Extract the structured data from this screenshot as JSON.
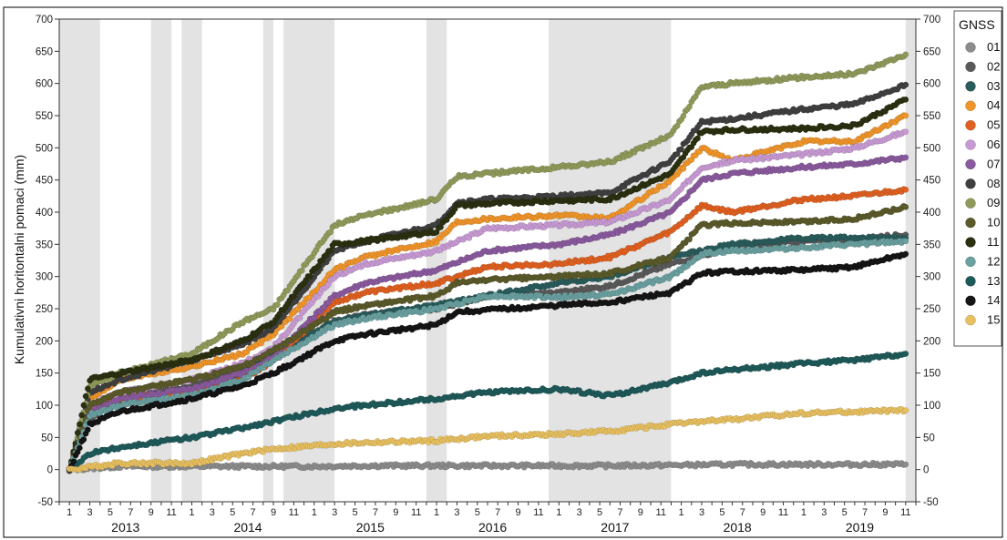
{
  "chart_data": {
    "type": "scatter",
    "title": "",
    "ylabel": "Kumulativni horitontalni pomaci (mm)",
    "xlabel": "",
    "ylim": [
      -50,
      700
    ],
    "yticks": [
      -50,
      0,
      50,
      100,
      150,
      200,
      250,
      300,
      350,
      400,
      450,
      500,
      550,
      600,
      650,
      700
    ],
    "x_range_months": [
      "2012-12",
      "2019-12"
    ],
    "years": [
      "2013",
      "2014",
      "2015",
      "2016",
      "2017",
      "2018",
      "2019"
    ],
    "month_ticks": [
      "1",
      "3",
      "5",
      "7",
      "9",
      "11"
    ],
    "grid": false,
    "shaded_periods": [
      [
        "2012-12",
        "2013-04"
      ],
      [
        "2013-09",
        "2013-11"
      ],
      [
        "2013-12",
        "2014-02"
      ],
      [
        "2014-08",
        "2014-09"
      ],
      [
        "2014-10",
        "2015-03"
      ],
      [
        "2015-12",
        "2016-02"
      ],
      [
        "2016-12",
        "2017-12"
      ],
      [
        "2019-11",
        "2019-12"
      ]
    ],
    "legend": {
      "title": "GNSS",
      "position": "right"
    },
    "series": [
      {
        "name": "01",
        "color": "#8c8c8c",
        "points": [
          [
            "2013-01",
            0
          ],
          [
            "2013-06",
            5
          ],
          [
            "2014-01",
            5
          ],
          [
            "2014-06",
            5
          ],
          [
            "2015-01",
            5
          ],
          [
            "2015-06",
            6
          ],
          [
            "2016-01",
            6
          ],
          [
            "2016-06",
            6
          ],
          [
            "2017-01",
            6
          ],
          [
            "2017-06",
            6
          ],
          [
            "2018-01",
            7
          ],
          [
            "2018-06",
            8
          ],
          [
            "2019-01",
            8
          ],
          [
            "2019-06",
            8
          ],
          [
            "2019-11",
            8
          ]
        ]
      },
      {
        "name": "02",
        "color": "#5a5a5a",
        "points": [
          [
            "2013-01",
            0
          ],
          [
            "2013-03",
            80
          ],
          [
            "2013-06",
            110
          ],
          [
            "2014-01",
            130
          ],
          [
            "2014-06",
            160
          ],
          [
            "2014-09",
            170
          ],
          [
            "2015-03",
            230
          ],
          [
            "2015-06",
            240
          ],
          [
            "2016-01",
            250
          ],
          [
            "2016-06",
            270
          ],
          [
            "2017-01",
            275
          ],
          [
            "2017-06",
            285
          ],
          [
            "2017-12",
            320
          ],
          [
            "2018-06",
            345
          ],
          [
            "2019-01",
            355
          ],
          [
            "2019-06",
            358
          ],
          [
            "2019-11",
            365
          ]
        ]
      },
      {
        "name": "03",
        "color": "#2a5c5c",
        "points": [
          [
            "2013-01",
            0
          ],
          [
            "2013-03",
            90
          ],
          [
            "2013-06",
            105
          ],
          [
            "2014-01",
            120
          ],
          [
            "2014-06",
            150
          ],
          [
            "2014-09",
            180
          ],
          [
            "2015-03",
            230
          ],
          [
            "2015-06",
            240
          ],
          [
            "2016-01",
            255
          ],
          [
            "2016-06",
            270
          ],
          [
            "2017-01",
            290
          ],
          [
            "2017-06",
            300
          ],
          [
            "2017-12",
            330
          ],
          [
            "2018-06",
            350
          ],
          [
            "2019-01",
            360
          ],
          [
            "2019-06",
            360
          ],
          [
            "2019-11",
            360
          ]
        ]
      },
      {
        "name": "04",
        "color": "#f0952a",
        "points": [
          [
            "2013-01",
            0
          ],
          [
            "2013-03",
            110
          ],
          [
            "2013-06",
            140
          ],
          [
            "2014-01",
            160
          ],
          [
            "2014-06",
            180
          ],
          [
            "2014-09",
            210
          ],
          [
            "2015-03",
            310
          ],
          [
            "2015-06",
            330
          ],
          [
            "2016-01",
            355
          ],
          [
            "2016-03",
            385
          ],
          [
            "2016-06",
            390
          ],
          [
            "2017-01",
            395
          ],
          [
            "2017-06",
            390
          ],
          [
            "2017-12",
            450
          ],
          [
            "2018-03",
            500
          ],
          [
            "2018-06",
            480
          ],
          [
            "2019-01",
            510
          ],
          [
            "2019-06",
            510
          ],
          [
            "2019-11",
            550
          ]
        ]
      },
      {
        "name": "05",
        "color": "#e06020",
        "points": [
          [
            "2013-01",
            0
          ],
          [
            "2013-03",
            95
          ],
          [
            "2013-06",
            110
          ],
          [
            "2014-01",
            120
          ],
          [
            "2014-06",
            140
          ],
          [
            "2014-09",
            170
          ],
          [
            "2015-03",
            260
          ],
          [
            "2015-06",
            275
          ],
          [
            "2016-01",
            290
          ],
          [
            "2016-06",
            315
          ],
          [
            "2017-01",
            320
          ],
          [
            "2017-06",
            330
          ],
          [
            "2017-12",
            370
          ],
          [
            "2018-03",
            410
          ],
          [
            "2018-06",
            400
          ],
          [
            "2019-01",
            420
          ],
          [
            "2019-06",
            425
          ],
          [
            "2019-11",
            435
          ]
        ]
      },
      {
        "name": "06",
        "color": "#c89ad4",
        "points": [
          [
            "2013-01",
            0
          ],
          [
            "2013-03",
            100
          ],
          [
            "2013-06",
            120
          ],
          [
            "2014-01",
            140
          ],
          [
            "2014-06",
            165
          ],
          [
            "2014-09",
            190
          ],
          [
            "2015-03",
            300
          ],
          [
            "2015-06",
            320
          ],
          [
            "2016-01",
            340
          ],
          [
            "2016-06",
            375
          ],
          [
            "2017-01",
            380
          ],
          [
            "2017-06",
            385
          ],
          [
            "2017-12",
            420
          ],
          [
            "2018-03",
            470
          ],
          [
            "2018-06",
            480
          ],
          [
            "2019-01",
            490
          ],
          [
            "2019-06",
            500
          ],
          [
            "2019-11",
            525
          ]
        ]
      },
      {
        "name": "07",
        "color": "#8a5a9e",
        "points": [
          [
            "2013-01",
            0
          ],
          [
            "2013-03",
            90
          ],
          [
            "2013-06",
            110
          ],
          [
            "2014-01",
            125
          ],
          [
            "2014-06",
            150
          ],
          [
            "2014-09",
            175
          ],
          [
            "2015-03",
            270
          ],
          [
            "2015-06",
            290
          ],
          [
            "2016-01",
            310
          ],
          [
            "2016-06",
            340
          ],
          [
            "2017-01",
            350
          ],
          [
            "2017-06",
            365
          ],
          [
            "2017-12",
            400
          ],
          [
            "2018-03",
            450
          ],
          [
            "2018-06",
            460
          ],
          [
            "2019-01",
            470
          ],
          [
            "2019-06",
            475
          ],
          [
            "2019-11",
            485
          ]
        ]
      },
      {
        "name": "08",
        "color": "#404040",
        "points": [
          [
            "2013-01",
            0
          ],
          [
            "2013-03",
            120
          ],
          [
            "2013-06",
            140
          ],
          [
            "2014-01",
            170
          ],
          [
            "2014-06",
            195
          ],
          [
            "2014-09",
            220
          ],
          [
            "2015-03",
            340
          ],
          [
            "2015-06",
            355
          ],
          [
            "2016-01",
            380
          ],
          [
            "2016-03",
            415
          ],
          [
            "2016-06",
            420
          ],
          [
            "2017-01",
            425
          ],
          [
            "2017-06",
            430
          ],
          [
            "2017-12",
            480
          ],
          [
            "2018-03",
            540
          ],
          [
            "2018-06",
            545
          ],
          [
            "2019-01",
            560
          ],
          [
            "2019-06",
            568
          ],
          [
            "2019-11",
            598
          ]
        ]
      },
      {
        "name": "09",
        "color": "#8f9a5a",
        "points": [
          [
            "2013-01",
            0
          ],
          [
            "2013-03",
            130
          ],
          [
            "2013-06",
            150
          ],
          [
            "2014-01",
            180
          ],
          [
            "2014-06",
            230
          ],
          [
            "2014-09",
            250
          ],
          [
            "2015-03",
            380
          ],
          [
            "2015-06",
            395
          ],
          [
            "2016-01",
            420
          ],
          [
            "2016-03",
            455
          ],
          [
            "2016-06",
            460
          ],
          [
            "2017-01",
            470
          ],
          [
            "2017-06",
            478
          ],
          [
            "2017-12",
            520
          ],
          [
            "2018-03",
            595
          ],
          [
            "2018-06",
            600
          ],
          [
            "2019-01",
            610
          ],
          [
            "2019-06",
            615
          ],
          [
            "2019-11",
            645
          ]
        ]
      },
      {
        "name": "10",
        "color": "#5a5a2a",
        "points": [
          [
            "2013-01",
            0
          ],
          [
            "2013-03",
            100
          ],
          [
            "2013-06",
            120
          ],
          [
            "2014-01",
            140
          ],
          [
            "2014-06",
            160
          ],
          [
            "2014-09",
            185
          ],
          [
            "2015-03",
            245
          ],
          [
            "2015-06",
            255
          ],
          [
            "2016-01",
            270
          ],
          [
            "2016-03",
            290
          ],
          [
            "2016-06",
            295
          ],
          [
            "2017-01",
            300
          ],
          [
            "2017-06",
            305
          ],
          [
            "2017-12",
            330
          ],
          [
            "2018-03",
            380
          ],
          [
            "2018-06",
            383
          ],
          [
            "2019-01",
            385
          ],
          [
            "2019-06",
            390
          ],
          [
            "2019-11",
            408
          ]
        ]
      },
      {
        "name": "11",
        "color": "#2a3010",
        "points": [
          [
            "2013-01",
            0
          ],
          [
            "2013-03",
            140
          ],
          [
            "2013-06",
            150
          ],
          [
            "2014-01",
            170
          ],
          [
            "2014-06",
            200
          ],
          [
            "2014-09",
            230
          ],
          [
            "2015-03",
            350
          ],
          [
            "2015-06",
            355
          ],
          [
            "2016-01",
            370
          ],
          [
            "2016-03",
            410
          ],
          [
            "2016-06",
            413
          ],
          [
            "2017-01",
            418
          ],
          [
            "2017-06",
            420
          ],
          [
            "2017-12",
            460
          ],
          [
            "2018-03",
            525
          ],
          [
            "2018-06",
            528
          ],
          [
            "2019-01",
            530
          ],
          [
            "2019-06",
            535
          ],
          [
            "2019-11",
            575
          ]
        ]
      },
      {
        "name": "12",
        "color": "#6aa0a0",
        "points": [
          [
            "2013-01",
            0
          ],
          [
            "2013-03",
            85
          ],
          [
            "2013-06",
            100
          ],
          [
            "2014-01",
            115
          ],
          [
            "2014-06",
            140
          ],
          [
            "2014-09",
            170
          ],
          [
            "2015-03",
            225
          ],
          [
            "2015-06",
            235
          ],
          [
            "2016-01",
            250
          ],
          [
            "2016-06",
            270
          ],
          [
            "2017-01",
            268
          ],
          [
            "2017-06",
            272
          ],
          [
            "2017-12",
            300
          ],
          [
            "2018-03",
            335
          ],
          [
            "2018-06",
            340
          ],
          [
            "2019-01",
            345
          ],
          [
            "2019-06",
            350
          ],
          [
            "2019-11",
            355
          ]
        ]
      },
      {
        "name": "13",
        "color": "#1f5a5a",
        "points": [
          [
            "2013-01",
            0
          ],
          [
            "2013-03",
            25
          ],
          [
            "2013-06",
            35
          ],
          [
            "2014-01",
            50
          ],
          [
            "2014-06",
            65
          ],
          [
            "2014-09",
            75
          ],
          [
            "2015-03",
            95
          ],
          [
            "2015-06",
            100
          ],
          [
            "2016-01",
            110
          ],
          [
            "2016-06",
            120
          ],
          [
            "2017-01",
            125
          ],
          [
            "2017-06",
            115
          ],
          [
            "2017-12",
            135
          ],
          [
            "2018-03",
            150
          ],
          [
            "2018-06",
            155
          ],
          [
            "2019-01",
            165
          ],
          [
            "2019-06",
            170
          ],
          [
            "2019-11",
            180
          ]
        ]
      },
      {
        "name": "14",
        "color": "#151515",
        "points": [
          [
            "2013-01",
            0
          ],
          [
            "2013-03",
            70
          ],
          [
            "2013-06",
            90
          ],
          [
            "2014-01",
            110
          ],
          [
            "2014-06",
            130
          ],
          [
            "2014-09",
            150
          ],
          [
            "2015-03",
            200
          ],
          [
            "2015-06",
            210
          ],
          [
            "2016-01",
            225
          ],
          [
            "2016-03",
            245
          ],
          [
            "2016-06",
            248
          ],
          [
            "2017-01",
            255
          ],
          [
            "2017-06",
            260
          ],
          [
            "2017-12",
            275
          ],
          [
            "2018-03",
            305
          ],
          [
            "2018-06",
            308
          ],
          [
            "2019-01",
            310
          ],
          [
            "2019-06",
            315
          ],
          [
            "2019-11",
            335
          ]
        ]
      },
      {
        "name": "15",
        "color": "#e8c060",
        "points": [
          [
            "2013-01",
            0
          ],
          [
            "2013-06",
            10
          ],
          [
            "2014-01",
            10
          ],
          [
            "2014-06",
            25
          ],
          [
            "2014-09",
            32
          ],
          [
            "2015-03",
            40
          ],
          [
            "2015-06",
            42
          ],
          [
            "2016-01",
            45
          ],
          [
            "2016-06",
            52
          ],
          [
            "2017-01",
            55
          ],
          [
            "2017-06",
            60
          ],
          [
            "2017-12",
            70
          ],
          [
            "2018-03",
            75
          ],
          [
            "2018-06",
            78
          ],
          [
            "2019-01",
            88
          ],
          [
            "2019-06",
            90
          ],
          [
            "2019-11",
            92
          ]
        ]
      }
    ]
  }
}
